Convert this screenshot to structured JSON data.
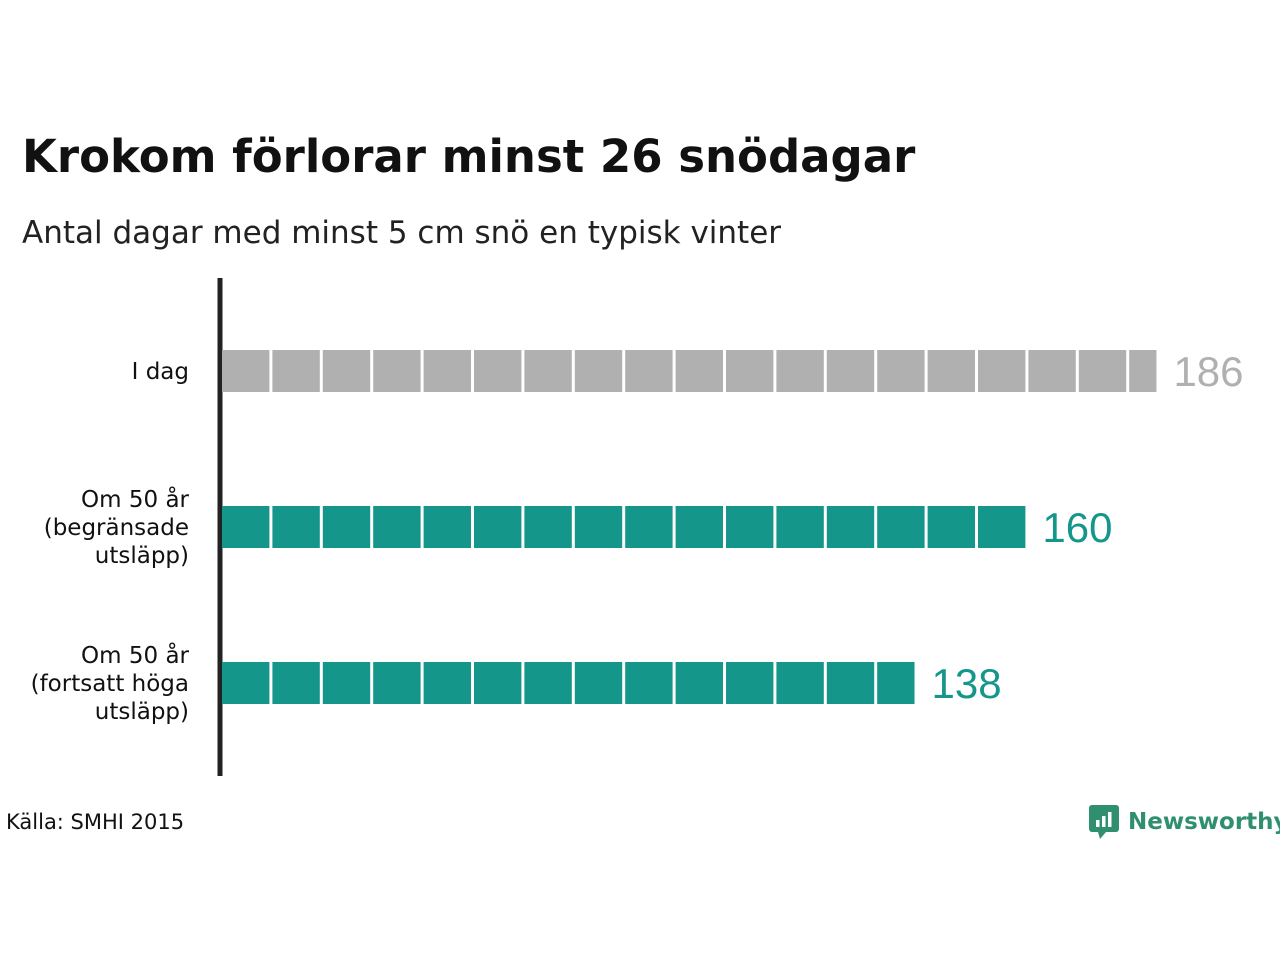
{
  "title": "Krokom förlorar minst 26 snödagar",
  "subtitle": "Antal dagar med minst 5 cm snö en typisk vinter",
  "source": "Källa: SMHI 2015",
  "brand": {
    "name": "Newsworthy",
    "icon": "newsworthy-logo-icon",
    "color": "#2f8f6e"
  },
  "chart_data": {
    "type": "bar",
    "orientation": "horizontal",
    "title": "Krokom förlorar minst 26 snödagar",
    "subtitle": "Antal dagar med minst 5 cm snö en typisk vinter",
    "categories": [
      [
        "I dag"
      ],
      [
        "Om 50 år",
        "(begränsade",
        "utsläpp)"
      ],
      [
        "Om 50 år",
        "(fortsatt höga",
        "utsläpp)"
      ]
    ],
    "values": [
      186,
      160,
      138
    ],
    "value_labels": [
      "186",
      "160",
      "138"
    ],
    "colors": [
      "#b0b0b0",
      "#14968a",
      "#14968a"
    ],
    "label_colors": [
      "#b0b0b0",
      "#14968a",
      "#14968a"
    ],
    "segment_size": 10,
    "xlim": [
      0,
      186
    ],
    "grid": false
  }
}
